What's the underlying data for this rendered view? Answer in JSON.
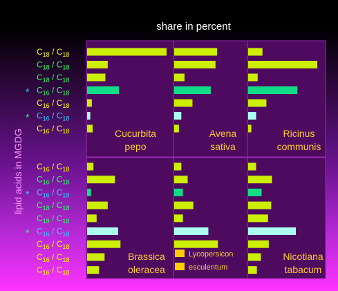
{
  "chart_data": {
    "type": "bar",
    "title": "share in percent",
    "ylabel": "lipid acids in   MGDG",
    "colors": {
      "yellow": "#ccee00",
      "green": "#11dd88",
      "cyan": "#aaffee",
      "panel": "#4d0a5e",
      "grid": "#9a2ab2",
      "small_legend_box": "#ffcc00"
    },
    "groups": [
      {
        "rows": [
          {
            "a": "18",
            "b": "18",
            "label_color": "yellow",
            "star": "",
            "bar_color": "yellow"
          },
          {
            "a": "18",
            "b": "18",
            "label_color": "green",
            "star": "",
            "bar_color": "yellow"
          },
          {
            "a": "18",
            "b": "18",
            "label_color": "green",
            "star": "",
            "bar_color": "yellow"
          },
          {
            "a": "16",
            "b": "18",
            "label_color": "green",
            "star": "cyan",
            "bar_color": "green"
          },
          {
            "a": "16",
            "b": "18",
            "label_color": "yellow",
            "star": "",
            "bar_color": "yellow"
          },
          {
            "a": "16",
            "b": "18",
            "label_color": "cyan",
            "star": "green",
            "bar_color": "cyan"
          },
          {
            "a": "16",
            "b": "18",
            "label_color": "yellow",
            "star": "",
            "bar_color": "yellow"
          }
        ],
        "panels": [
          {
            "species": [
              "Cucurbita",
              "pepo"
            ],
            "values": [
              100,
              26,
              23,
              40,
              6,
              4,
              7
            ]
          },
          {
            "species": [
              "Avena",
              "sativa"
            ],
            "values": [
              54,
              52,
              13,
              46,
              23,
              9,
              6
            ]
          },
          {
            "species": [
              "Ricinus",
              "communis"
            ],
            "values": [
              18,
              87,
              12,
              62,
              23,
              10,
              4
            ]
          }
        ]
      },
      {
        "rows": [
          {
            "a": "16",
            "b": "18",
            "label_color": "yellow",
            "star": "",
            "bar_color": "yellow"
          },
          {
            "a": "16",
            "b": "18",
            "label_color": "green",
            "star": "",
            "bar_color": "yellow"
          },
          {
            "a": "16",
            "b": "18",
            "label_color": "cyan",
            "star": "cyan",
            "bar_color": "green"
          },
          {
            "a": "18",
            "b": "18",
            "label_color": "green",
            "star": "",
            "bar_color": "yellow"
          },
          {
            "a": "18",
            "b": "18",
            "label_color": "green",
            "star": "",
            "bar_color": "yellow"
          },
          {
            "a": "16",
            "b": "18",
            "label_color": "cyan",
            "star": "green",
            "bar_color": "cyan"
          },
          {
            "a": "16",
            "b": "18",
            "label_color": "yellow",
            "star": "",
            "bar_color": "yellow"
          },
          {
            "a": "16",
            "b": "18",
            "label_color": "yellow",
            "star": "",
            "bar_color": "yellow"
          },
          {
            "a": "16",
            "b": "18",
            "label_color": "yellow",
            "star": "",
            "bar_color": "yellow"
          }
        ],
        "panels": [
          {
            "species": [
              "Brassica",
              "oleracea"
            ],
            "values": [
              8,
              35,
              5,
              26,
              12,
              39,
              42,
              22,
              15
            ]
          },
          {
            "species": [],
            "legend": [
              "Lycopersicon",
              "esculentum"
            ],
            "values": [
              9,
              17,
              11,
              24,
              11,
              43,
              55,
              0,
              0
            ]
          },
          {
            "species": [
              "Nicotiana",
              "tabacum"
            ],
            "values": [
              10,
              30,
              17,
              29,
              25,
              60,
              26,
              16,
              11
            ]
          }
        ]
      }
    ]
  }
}
